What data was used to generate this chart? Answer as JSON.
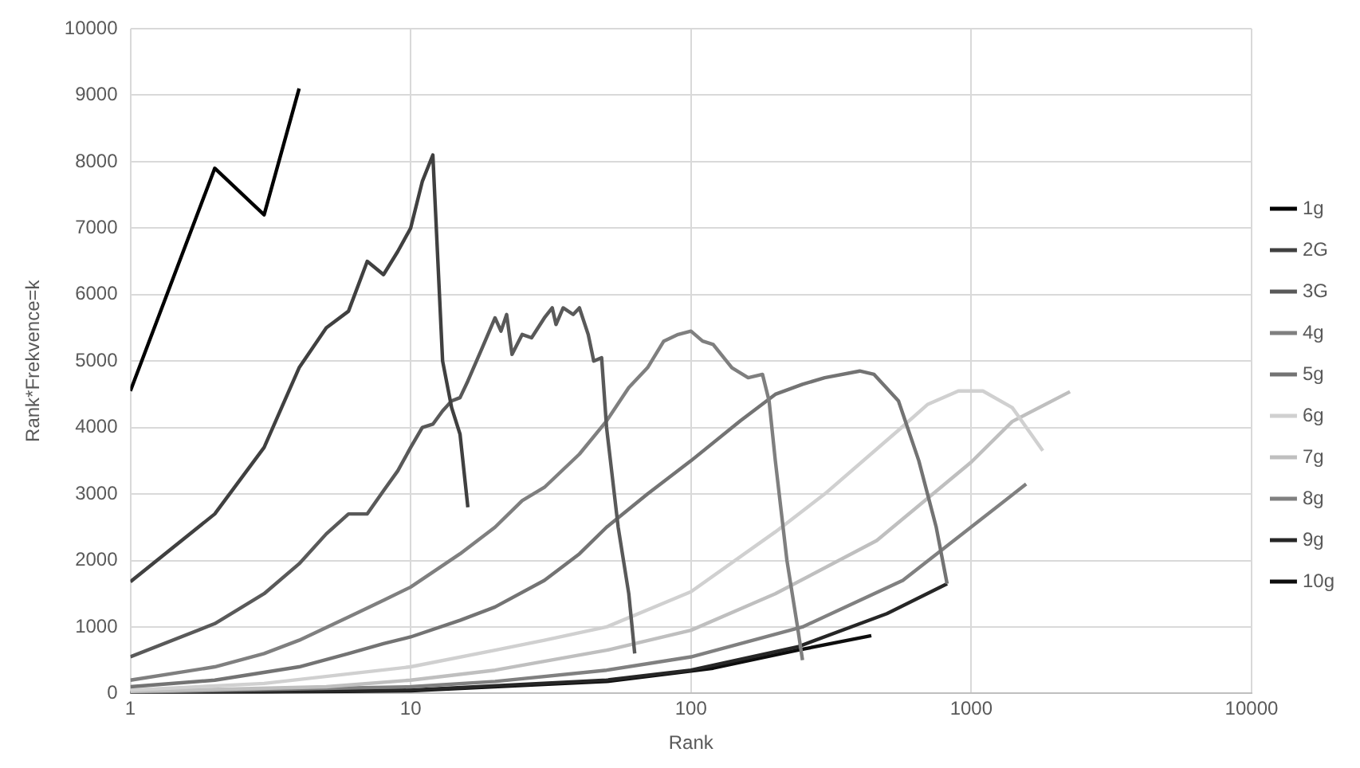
{
  "chart_data": {
    "type": "line",
    "xlabel": "Rank",
    "ylabel": "Rank*Frekvence=k",
    "log": "x",
    "grid": true,
    "legend": "right",
    "marker": "none",
    "line_style": "solid",
    "xlim": [
      1,
      10000
    ],
    "xticks": [
      1,
      10,
      100,
      1000,
      10000
    ],
    "ylim": [
      0,
      10000
    ],
    "yticks": [
      0,
      1000,
      2000,
      3000,
      4000,
      5000,
      6000,
      7000,
      8000,
      9000,
      10000
    ],
    "series": [
      {
        "name": "1g",
        "color": "#000000",
        "x": [
          1,
          2,
          3,
          4
        ],
        "values": [
          4550,
          7900,
          7200,
          9100
        ]
      },
      {
        "name": "2G",
        "color": "#404040",
        "x": [
          1,
          2,
          3,
          4,
          5,
          6,
          7,
          8,
          9,
          10,
          11,
          12,
          13,
          14,
          15,
          16
        ],
        "values": [
          1680,
          2700,
          3700,
          4900,
          5500,
          5750,
          6500,
          6300,
          6650,
          7000,
          7700,
          8100,
          5000,
          4300,
          3900,
          2800
        ]
      },
      {
        "name": "3G",
        "color": "#595959",
        "x": [
          1,
          2,
          3,
          4,
          5,
          6,
          7,
          8,
          9,
          10,
          11,
          12,
          13,
          14,
          15,
          16,
          18,
          20,
          21,
          22,
          23,
          25,
          27,
          30,
          32,
          33,
          35,
          38,
          40,
          43,
          45,
          48,
          50,
          55,
          60,
          63
        ],
        "values": [
          550,
          1050,
          1500,
          1950,
          2400,
          2700,
          2700,
          3050,
          3350,
          3700,
          4000,
          4050,
          4250,
          4400,
          4450,
          4700,
          5200,
          5650,
          5450,
          5700,
          5100,
          5400,
          5350,
          5650,
          5800,
          5550,
          5800,
          5700,
          5800,
          5400,
          5000,
          5050,
          4000,
          2500,
          1500,
          600
        ]
      },
      {
        "name": "4g",
        "color": "#7f7f7f",
        "x": [
          1,
          2,
          3,
          4,
          6,
          8,
          10,
          15,
          20,
          25,
          30,
          40,
          50,
          60,
          70,
          80,
          90,
          100,
          110,
          120,
          140,
          160,
          180,
          190,
          200,
          220,
          240,
          250
        ],
        "values": [
          200,
          400,
          600,
          800,
          1150,
          1400,
          1600,
          2100,
          2500,
          2900,
          3100,
          3600,
          4100,
          4600,
          4900,
          5300,
          5400,
          5450,
          5300,
          5250,
          4900,
          4750,
          4800,
          4400,
          3500,
          2000,
          1000,
          500
        ]
      },
      {
        "name": "5g",
        "color": "#737373",
        "x": [
          1,
          2,
          4,
          6,
          8,
          10,
          15,
          20,
          30,
          40,
          50,
          70,
          100,
          150,
          200,
          250,
          300,
          400,
          450,
          550,
          650,
          750,
          820
        ],
        "values": [
          100,
          200,
          400,
          600,
          750,
          850,
          1100,
          1300,
          1700,
          2100,
          2500,
          3000,
          3500,
          4100,
          4500,
          4650,
          4750,
          4850,
          4800,
          4400,
          3500,
          2500,
          1650
        ]
      },
      {
        "name": "6g",
        "color": "#d0d0d0",
        "x": [
          1,
          3,
          10,
          20,
          30,
          50,
          100,
          200,
          300,
          550,
          700,
          900,
          1100,
          1400,
          1800
        ],
        "values": [
          50,
          150,
          400,
          650,
          800,
          1000,
          1530,
          2430,
          3000,
          3960,
          4350,
          4550,
          4550,
          4300,
          3650
        ]
      },
      {
        "name": "7g",
        "color": "#bfbfbf",
        "x": [
          1,
          5,
          10,
          20,
          50,
          100,
          200,
          460,
          1000,
          1400,
          2250
        ],
        "values": [
          30,
          100,
          200,
          350,
          650,
          950,
          1500,
          2300,
          3480,
          4090,
          4540
        ]
      },
      {
        "name": "8g",
        "color": "#808080",
        "x": [
          1,
          10,
          20,
          50,
          100,
          250,
          570,
          1570
        ],
        "values": [
          20,
          100,
          180,
          350,
          550,
          1000,
          1700,
          3150
        ]
      },
      {
        "name": "9g",
        "color": "#262626",
        "x": [
          1,
          10,
          50,
          100,
          240,
          500,
          820
        ],
        "values": [
          10,
          50,
          200,
          350,
          700,
          1200,
          1650
        ]
      },
      {
        "name": "10g",
        "color": "#0d0d0d",
        "x": [
          1,
          10,
          50,
          120,
          240,
          440
        ],
        "values": [
          0,
          40,
          180,
          380,
          650,
          870
        ]
      }
    ]
  }
}
